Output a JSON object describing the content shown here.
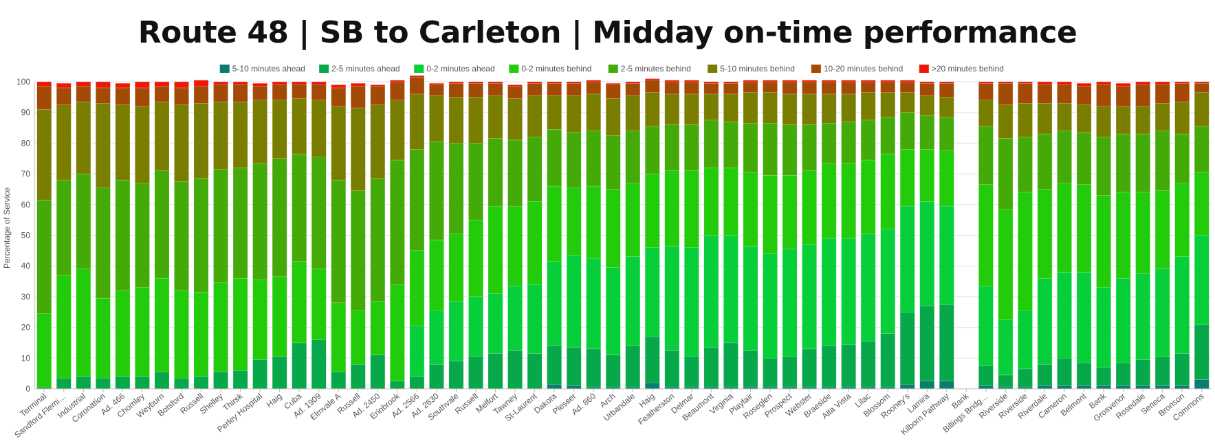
{
  "chart_data": {
    "type": "bar",
    "stacked": true,
    "title": "Route 48 | SB to Carleton | Midday on-time performance",
    "ylabel": "Percentage of Service",
    "xlabel": "",
    "ylim": [
      0,
      100
    ],
    "yticks": [
      0,
      10,
      20,
      30,
      40,
      50,
      60,
      70,
      80,
      90,
      100
    ],
    "grid": true,
    "legend_position": "top",
    "categories": [
      "Terminal",
      "Sandford Flemi…",
      "Industrial",
      "Coronation",
      "Ad. 466",
      "Chomley",
      "Weyburn",
      "Botsford",
      "Russell",
      "Shelley",
      "Thirsk",
      "Perley Hospital",
      "Haig",
      "Cuba",
      "Ad. 1909",
      "Elmvale A",
      "Russell",
      "Ad. 2450",
      "Erinbrook",
      "Ad. 2566",
      "Ad. 2630",
      "Southvale",
      "Russell",
      "Melfort",
      "Tawney",
      "St-Laurent",
      "Dakota",
      "Plesser",
      "Ad. 860",
      "Arch",
      "Urbandale",
      "Haig",
      "Featherston",
      "Delmar",
      "Beaumont",
      "Virginia",
      "Playfair",
      "Roseglen",
      "Prospect",
      "Webster",
      "Braeside",
      "Alta Vista",
      "Lilac",
      "Blossom",
      "Rooney's",
      "Lamira",
      "Kilborn Pathway",
      "Bank",
      "Billings Bridg…",
      "Riverside",
      "Riverside",
      "Riverdale",
      "Cameron",
      "Belmont",
      "Bank",
      "Grosvenor",
      "Rosedale",
      "Seneca",
      "Bronson",
      "Commons"
    ],
    "series": [
      {
        "name": "5-10 minutes ahead",
        "color": "#0a7d6e",
        "values": [
          0,
          0,
          0,
          0,
          0,
          0,
          0,
          0,
          0,
          0,
          0,
          0,
          0,
          0,
          0,
          0,
          0,
          0,
          0,
          0,
          0,
          0,
          0,
          0,
          0,
          0,
          1.5,
          1,
          0.5,
          0.5,
          0.5,
          2,
          0.5,
          0.5,
          0.5,
          0.5,
          0.5,
          0.5,
          0.5,
          0.5,
          0.5,
          0.5,
          0.5,
          0.5,
          1.5,
          2.5,
          2.5,
          0,
          1,
          0.5,
          0.5,
          1,
          1,
          1,
          1,
          1,
          1,
          1,
          1,
          3
        ]
      },
      {
        "name": "2-5 minutes ahead",
        "color": "#07a84a",
        "values": [
          0.5,
          3.5,
          4,
          3.5,
          4,
          4,
          5.5,
          3.5,
          4,
          5.5,
          6,
          9.5,
          10.5,
          15,
          16,
          5.5,
          8,
          11,
          2.5,
          4,
          8,
          9,
          10.5,
          11.5,
          12.5,
          11.5,
          12.5,
          12.5,
          12.5,
          10.5,
          13.5,
          15,
          12,
          10,
          13,
          14.5,
          12,
          9.5,
          10,
          12.5,
          13.5,
          14,
          15,
          17.5,
          23.5,
          24.5,
          25,
          0,
          6.5,
          4,
          6,
          7,
          9,
          7.5,
          6,
          7.5,
          8.5,
          9.5,
          10.5,
          18
        ]
      },
      {
        "name": "0-2 minutes ahead",
        "color": "#06cf3a",
        "values": [
          0,
          0,
          0,
          0,
          0,
          0,
          0,
          0,
          0,
          0,
          0,
          0,
          0,
          0,
          0,
          0,
          0,
          0,
          0,
          16.5,
          17.5,
          19.5,
          19.5,
          19.5,
          21,
          22.5,
          27.5,
          30,
          29.5,
          28.5,
          29,
          29,
          34,
          35.5,
          36.5,
          35,
          34,
          34,
          35,
          34,
          35,
          34.5,
          35,
          34,
          34.5,
          34,
          32,
          0,
          26,
          18,
          19,
          28,
          28,
          29.5,
          26,
          27.5,
          28,
          28.5,
          31.5,
          29
        ]
      },
      {
        "name": "0-2 minutes behind",
        "color": "#22cc0a",
        "values": [
          24,
          33.5,
          35,
          26,
          28,
          29,
          30.5,
          28.5,
          27.5,
          29,
          30,
          26,
          26,
          26.5,
          23,
          22.5,
          17.5,
          17.5,
          31.5,
          24.5,
          23,
          22,
          25,
          28.5,
          26,
          27,
          24.5,
          22,
          23.5,
          25.5,
          24,
          24,
          24.5,
          25,
          22,
          22,
          24,
          25.5,
          24,
          24,
          24.5,
          24.5,
          24,
          24.5,
          18.5,
          17,
          18,
          0,
          33,
          36,
          38.5,
          29,
          29,
          28.5,
          30,
          28,
          26.5,
          25.5,
          24,
          20.5
        ]
      },
      {
        "name": "2-5 minutes behind",
        "color": "#44aa08",
        "values": [
          37,
          31,
          31,
          36,
          36,
          34,
          35,
          35.5,
          37,
          37,
          36,
          38,
          38.5,
          35,
          36.5,
          40,
          39,
          40,
          40.5,
          33,
          32,
          29.5,
          25,
          22,
          21.5,
          21,
          18.5,
          18,
          18,
          17.5,
          17,
          15.5,
          15,
          15,
          15.5,
          15,
          16,
          17,
          16.5,
          15,
          13,
          13.5,
          13,
          12,
          12,
          11,
          11,
          0,
          19,
          23,
          18,
          18,
          17,
          17,
          19,
          19,
          19,
          19.5,
          16,
          15
        ]
      },
      {
        "name": "5-10 minutes behind",
        "color": "#7a7e00",
        "values": [
          29.5,
          24.5,
          23.5,
          27.5,
          24.5,
          25,
          22.5,
          25,
          24.5,
          22,
          21.5,
          20.5,
          19,
          18,
          18.5,
          24,
          27,
          24,
          19.5,
          18,
          15,
          15,
          15,
          14,
          13.5,
          13.5,
          11,
          12,
          12,
          12,
          11.5,
          11,
          10,
          10,
          8.5,
          9,
          10,
          10,
          10,
          10,
          9.5,
          9,
          9,
          8,
          6.5,
          6.5,
          6.5,
          0,
          8.5,
          11,
          11,
          10,
          9,
          9,
          10,
          9,
          9,
          9,
          10.5,
          11
        ]
      },
      {
        "name": "10-20 minutes behind",
        "color": "#a34a06",
        "values": [
          7.5,
          5.5,
          5,
          5,
          5.5,
          6,
          5,
          5.5,
          5.5,
          5.5,
          5.5,
          4.5,
          5,
          4.5,
          5,
          6,
          7,
          6,
          6,
          5.5,
          3.5,
          4.5,
          4.5,
          4,
          4,
          4,
          4,
          4,
          4,
          4.5,
          4,
          4,
          4,
          4,
          3.5,
          3.5,
          3.5,
          3.5,
          4,
          4,
          4,
          4,
          3.5,
          3.5,
          3.5,
          4,
          4.5,
          0,
          5.5,
          7,
          6.5,
          6,
          6,
          6,
          7,
          6.5,
          7,
          6,
          6,
          3
        ]
      },
      {
        "name": ">20 minutes behind",
        "color": "#ee1808",
        "values": [
          1.5,
          1.5,
          1.5,
          2,
          1.5,
          2,
          1.5,
          2,
          2,
          1,
          1,
          1,
          1,
          1,
          1,
          1,
          1,
          0.5,
          0.5,
          0.5,
          0.5,
          0.5,
          0.5,
          0.5,
          0.5,
          0.5,
          0.5,
          0.5,
          0.5,
          0.5,
          0.5,
          0.5,
          0.5,
          0.5,
          0.5,
          0.5,
          0.5,
          0.5,
          0.5,
          0.5,
          0.5,
          0.5,
          0.5,
          0.5,
          0.5,
          0.5,
          0.5,
          0,
          0.5,
          0.5,
          0.5,
          1,
          1,
          1,
          1,
          1,
          1,
          1,
          0.5,
          0.5
        ]
      }
    ]
  }
}
